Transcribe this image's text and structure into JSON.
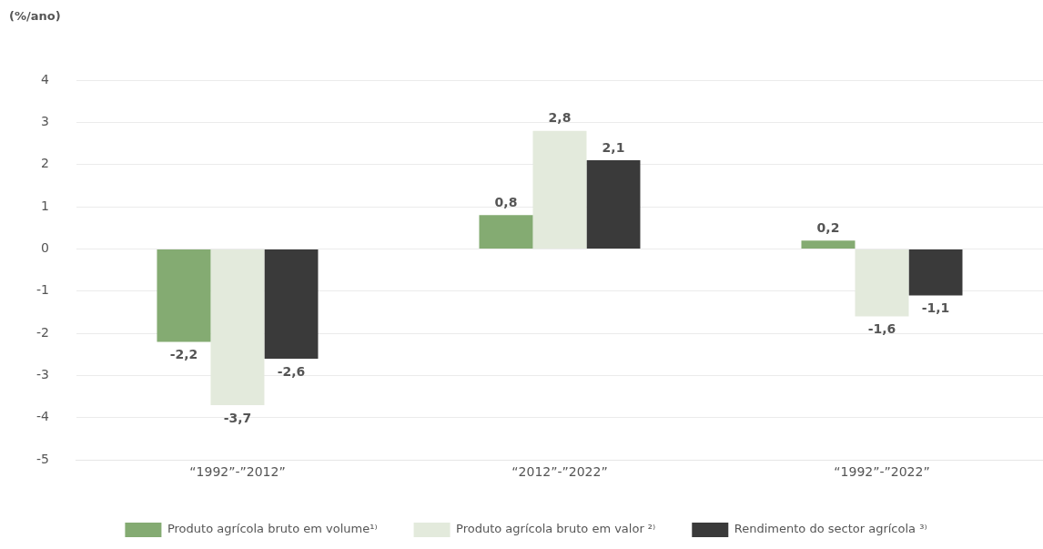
{
  "chart_data": {
    "type": "bar",
    "ylabel": "(%/ano)",
    "categories": [
      "“1992”-”2012”",
      "“2012”-”2022”",
      "“1992”-”2022”"
    ],
    "series": [
      {
        "name": "Produto agrícola bruto em volume¹⁾",
        "color": "#84ab72",
        "values": [
          -2.2,
          0.8,
          0.2
        ],
        "value_labels": [
          "-2,2",
          "0,8",
          "0,2"
        ]
      },
      {
        "name": "Produto agrícola bruto em valor ²⁾",
        "color": "#e3eadc",
        "values": [
          -3.7,
          2.8,
          -1.6
        ],
        "value_labels": [
          "-3,7",
          "2,8",
          "-1,6"
        ]
      },
      {
        "name": "Rendimento do sector agrícola ³⁾",
        "color": "#3a3a3a",
        "values": [
          -2.6,
          2.1,
          -1.1
        ],
        "value_labels": [
          "-2,6",
          "2,1",
          "-1,1"
        ]
      }
    ],
    "ylim": [
      -5,
      4
    ],
    "yticks": [
      -5,
      -4,
      -3,
      -2,
      -1,
      0,
      1,
      2,
      3,
      4
    ],
    "grid": "y",
    "legend": "bottom"
  }
}
